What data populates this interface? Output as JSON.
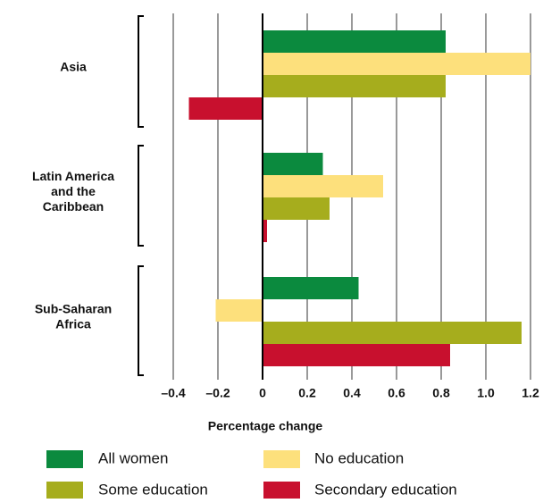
{
  "chart_data": {
    "type": "hbar",
    "categories": [
      "Asia",
      "Latin America and the Caribbean",
      "Sub-Saharan Africa"
    ],
    "series": [
      {
        "name": "All women",
        "color": "#0b8a3e",
        "values": [
          0.82,
          0.27,
          0.43
        ]
      },
      {
        "name": "No education",
        "color": "#fde07c",
        "values": [
          1.2,
          0.54,
          -0.21
        ]
      },
      {
        "name": "Some education",
        "color": "#a6ad1d",
        "values": [
          0.82,
          0.3,
          1.16
        ]
      },
      {
        "name": "Secondary education",
        "color": "#c8102e",
        "values": [
          -0.33,
          0.02,
          0.84
        ]
      }
    ],
    "xlabel": "Percentage change",
    "xlim": [
      -0.5,
      1.2
    ],
    "xticks": [
      {
        "value": -0.4,
        "label": "–0.4"
      },
      {
        "value": -0.2,
        "label": "–0.2"
      },
      0,
      0.2,
      0.4,
      0.6,
      0.8,
      {
        "value": 1.0,
        "label": "1.0"
      },
      1.2
    ],
    "grid": true
  }
}
